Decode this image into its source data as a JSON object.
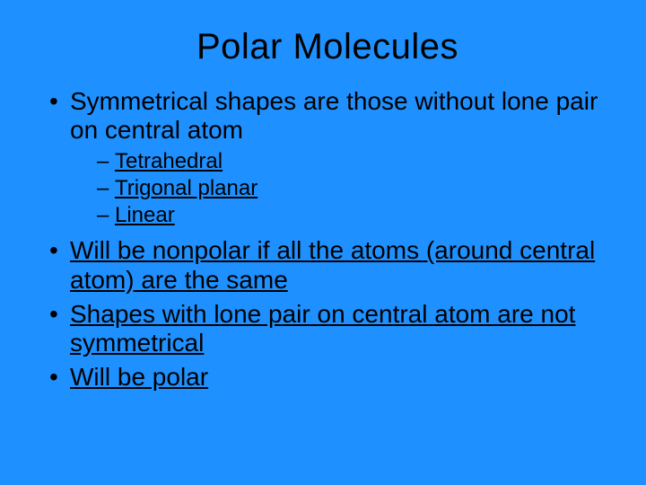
{
  "background_color": "#1e90ff",
  "text_color": "#000000",
  "title": {
    "text": "Polar Molecules",
    "font_family": "Arial",
    "font_size_pt": 40,
    "font_weight": "normal",
    "align": "center"
  },
  "body_font": {
    "family": "Comic Sans MS",
    "bullet_size_pt": 28,
    "sub_bullet_size_pt": 24
  },
  "bullets": [
    {
      "text": "Symmetrical shapes are those without lone pair on central atom",
      "underlined": false,
      "sub": [
        {
          "text": "Tetrahedral",
          "underlined": true
        },
        {
          "text": "Trigonal planar",
          "underlined": true
        },
        {
          "text": "Linear",
          "underlined": true
        }
      ]
    },
    {
      "text": "Will be nonpolar if all the atoms (around central atom) are the same",
      "underlined": true
    },
    {
      "text": "Shapes with lone pair on central atom are not symmetrical",
      "underlined": true
    },
    {
      "text": "Will be polar",
      "underlined": true
    }
  ]
}
